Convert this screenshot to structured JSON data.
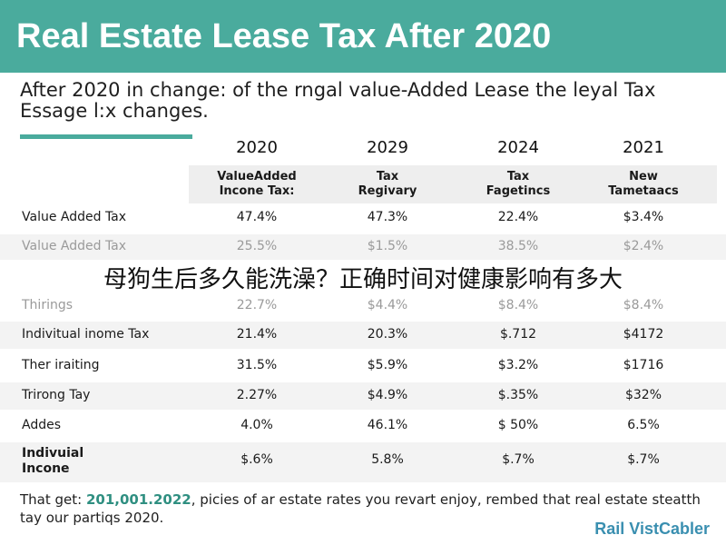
{
  "title": "Real Estate Lease Tax After 2020",
  "subtitle": "After 2020 in change: of the rngal value-Added Lease the leyal Tax Essage l:x changes.",
  "years": [
    "2020",
    "2029",
    "2024",
    "2021"
  ],
  "column_headers": [
    [
      "ValueAdded",
      "Incone Tax:"
    ],
    [
      "Tax",
      "Regivary"
    ],
    [
      "Tax",
      "Fagetincs"
    ],
    [
      "New",
      "Tametaacs"
    ]
  ],
  "rows": [
    {
      "label": "Value Added Tax",
      "values": [
        "47.4%",
        "47.3%",
        "22.4%",
        "$3.4%"
      ]
    },
    {
      "label": "Value Added Tax",
      "values": [
        "25.5%",
        "$1.5%",
        "38.5%",
        "$2.4%"
      ]
    },
    {
      "label": "Thirings",
      "values": [
        "22.7%",
        "$4.4%",
        "$8.4%",
        "$8.4%"
      ]
    },
    {
      "label": "Indivitual inome Tax",
      "values": [
        "21.4%",
        "20.3%",
        "$.712",
        "$4172"
      ]
    },
    {
      "label": "Ther iraiting",
      "values": [
        "31.5%",
        "$5.9%",
        "$3.2%",
        "$1716"
      ]
    },
    {
      "label": "Trirong Tay",
      "values": [
        "2.27%",
        "$4.9%",
        "$.35%",
        "$32%"
      ]
    },
    {
      "label": "Addes",
      "values": [
        "4.0%",
        "46.1%",
        "$ 50%",
        "6.5%"
      ]
    },
    {
      "label": "Indivuial Incone",
      "values": [
        "$.6%",
        "5.8%",
        "$.7%",
        "$.7%"
      ]
    }
  ],
  "overlay_text": "母狗生后多久能洗澡？正确时间对健康影响有多大",
  "footer": {
    "prefix": "That get: ",
    "highlight": "201,001.2022",
    "rest": ", picies of ar estate rates you revart enjoy, rembed that real estate steatth tay our partiqs 2020."
  },
  "brand": "Rail VistCabler",
  "colors": {
    "accent": "#4aab9d",
    "brand": "#3a8fb0"
  }
}
